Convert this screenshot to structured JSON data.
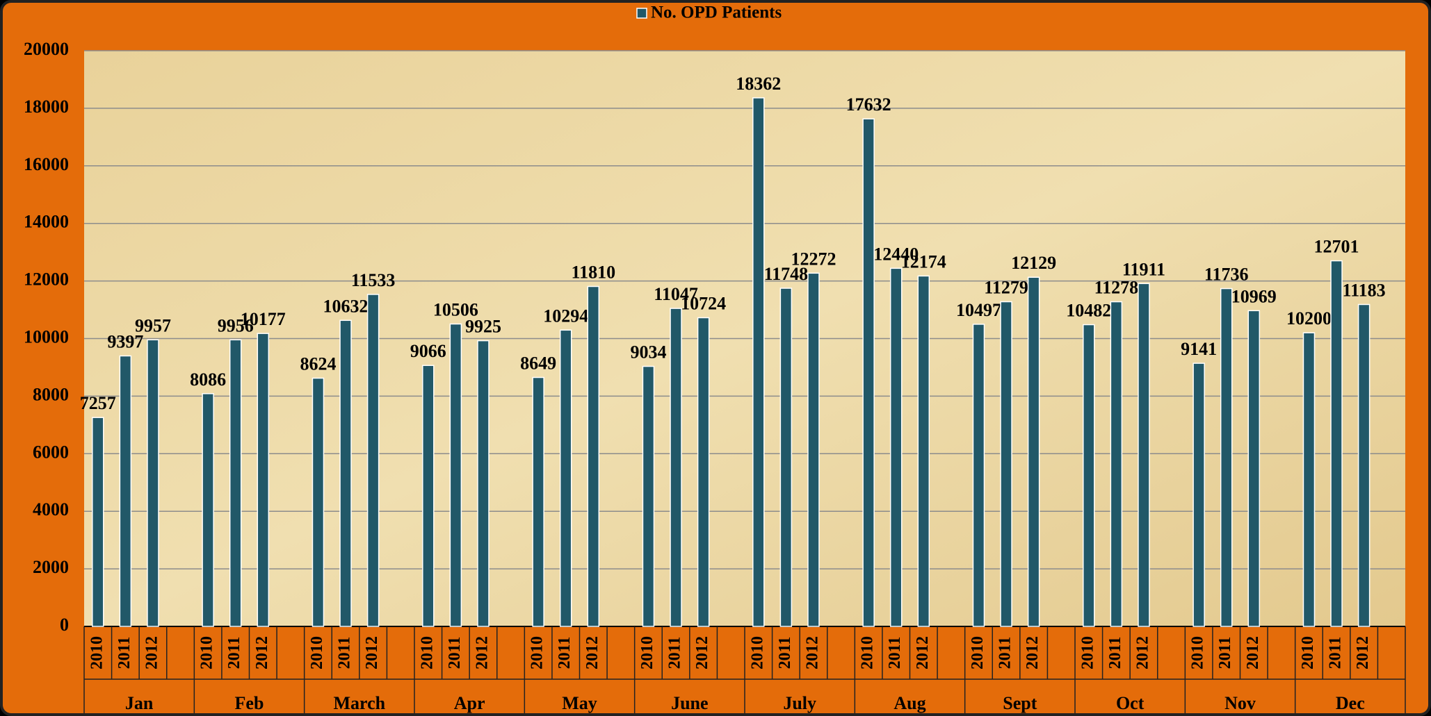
{
  "chart_data": {
    "type": "grouped-bar",
    "legend": "No. OPD Patients",
    "color": "#215868",
    "groups": [
      "Jan",
      "Feb",
      "March",
      "Apr",
      "May",
      "June",
      "July",
      "Aug",
      "Sept",
      "Oct",
      "Nov",
      "Dec"
    ],
    "categories": [
      "2010",
      "2011",
      "2012"
    ],
    "values": [
      [
        7257,
        9397,
        9957
      ],
      [
        8086,
        9956,
        10177
      ],
      [
        8624,
        10632,
        11533
      ],
      [
        9066,
        10506,
        9925
      ],
      [
        8649,
        10294,
        11810
      ],
      [
        9034,
        11047,
        10724
      ],
      [
        18362,
        11748,
        12272
      ],
      [
        17632,
        12440,
        12174
      ],
      [
        10497,
        11279,
        12129
      ],
      [
        10482,
        11278,
        11911
      ],
      [
        9141,
        11736,
        10969
      ],
      [
        10200,
        12701,
        11183
      ]
    ],
    "ylim": [
      0,
      20000
    ],
    "yticks": [
      0,
      2000,
      4000,
      6000,
      8000,
      10000,
      12000,
      14000,
      16000,
      18000,
      20000
    ],
    "grid": true
  }
}
